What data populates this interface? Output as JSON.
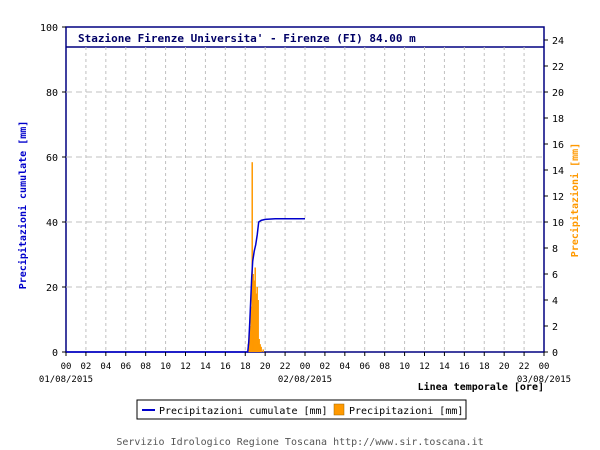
{
  "chart_data": {
    "type": "bar",
    "title": "Stazione Firenze Universita' - Firenze (FI) 84.00 m",
    "xlabel": "Linea temporale [ore]",
    "ylabel_left": "Precipitazioni cumulate [mm]",
    "ylabel_right": "Precipitazioni [mm]",
    "x_range_hours": [
      0,
      48
    ],
    "x_tick_labels": [
      "00",
      "02",
      "04",
      "06",
      "08",
      "10",
      "12",
      "14",
      "16",
      "18",
      "20",
      "22",
      "00",
      "02",
      "04",
      "06",
      "08",
      "10",
      "12",
      "14",
      "16",
      "18",
      "20",
      "22",
      "00"
    ],
    "date_labels": [
      {
        "hour": 0,
        "label": "01/08/2015"
      },
      {
        "hour": 24,
        "label": "02/08/2015"
      },
      {
        "hour": 48,
        "label": "03/08/2015"
      }
    ],
    "y_left": {
      "min": 0,
      "max": 100,
      "ticks": [
        0,
        20,
        40,
        60,
        80,
        100
      ]
    },
    "y_right": {
      "min": 0,
      "max": 25,
      "ticks": [
        0,
        2,
        4,
        6,
        8,
        10,
        12,
        14,
        16,
        18,
        20,
        22,
        24
      ]
    },
    "grid": true,
    "legend_position": "bottom",
    "colors": {
      "cumulative": "#0000cc",
      "bars": "#ff9900",
      "right_axis": "#ff9900",
      "left_label": "#0000cc",
      "plot_border": "#000080"
    },
    "series": [
      {
        "name": "Precipitazioni cumulate [mm]",
        "type": "step-line",
        "axis": "left",
        "points": [
          [
            0,
            0
          ],
          [
            18.25,
            0
          ],
          [
            18.35,
            3
          ],
          [
            18.45,
            9
          ],
          [
            18.55,
            16
          ],
          [
            18.65,
            23
          ],
          [
            18.75,
            28
          ],
          [
            18.9,
            31
          ],
          [
            19.05,
            33
          ],
          [
            19.2,
            36
          ],
          [
            19.35,
            40
          ],
          [
            19.6,
            40.5
          ],
          [
            20.0,
            40.8
          ],
          [
            21.0,
            41
          ],
          [
            24.0,
            41
          ]
        ]
      },
      {
        "name": "Precipitazioni [mm]",
        "type": "bar",
        "axis": "right",
        "bar_width_hours": 0.1,
        "points": [
          [
            18.3,
            0.6
          ],
          [
            18.4,
            1.5
          ],
          [
            18.5,
            2.0
          ],
          [
            18.6,
            3.5
          ],
          [
            18.7,
            14.6
          ],
          [
            18.8,
            6.0
          ],
          [
            18.9,
            5.5
          ],
          [
            19.0,
            6.5
          ],
          [
            19.1,
            4.5
          ],
          [
            19.2,
            5.0
          ],
          [
            19.3,
            4.0
          ],
          [
            19.4,
            1.0
          ],
          [
            19.5,
            0.6
          ],
          [
            19.6,
            0.4
          ],
          [
            19.8,
            0.2
          ]
        ]
      }
    ]
  },
  "footer": "Servizio Idrologico Regione Toscana http://www.sir.toscana.it"
}
